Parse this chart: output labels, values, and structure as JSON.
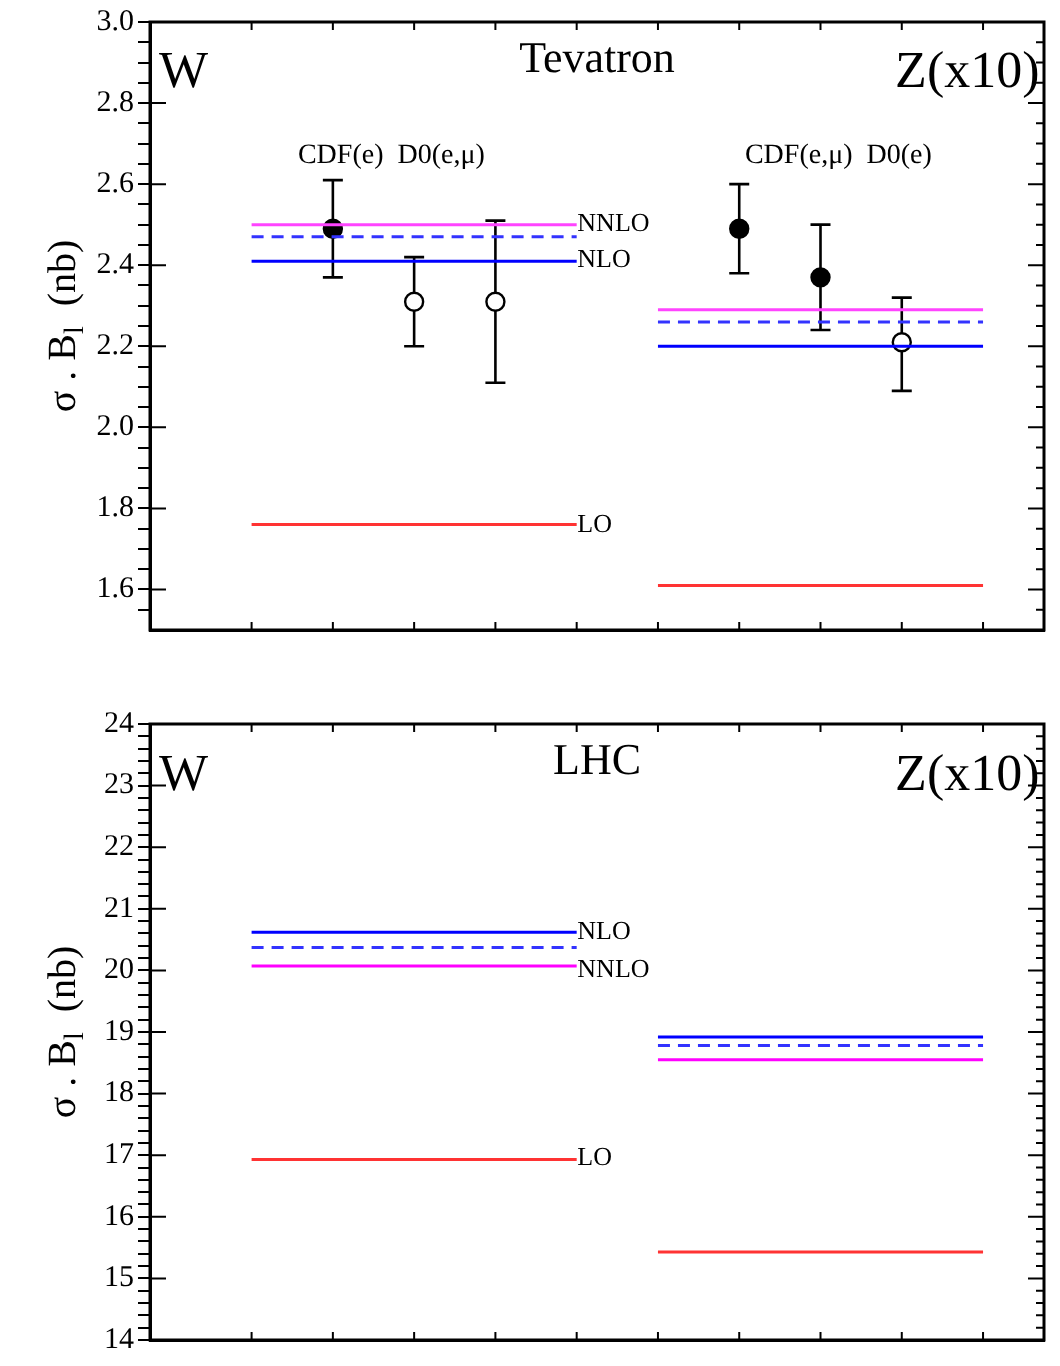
{
  "chart_data": [
    {
      "type": "line",
      "title": "Tevatron",
      "ylabel": "σ . B$_{l}$  (nb)",
      "tick_labels": "y",
      "categories": [
        null,
        null,
        null,
        null,
        null,
        null,
        null,
        null,
        null,
        null,
        null,
        null,
        null,
        null,
        null,
        null,
        null,
        null,
        null,
        null,
        null,
        null
      ],
      "ylim": [
        1.5,
        3.0
      ],
      "yticks": [
        {
          "value": 1.55,
          "label": null
        },
        1.6,
        {
          "value": 1.65,
          "label": null
        },
        {
          "value": 1.7,
          "label": null
        },
        {
          "value": 1.75,
          "label": null
        },
        1.8,
        {
          "value": 1.85,
          "label": null
        },
        {
          "value": 1.9,
          "label": null
        },
        {
          "value": 1.95,
          "label": null
        },
        {
          "value": 2,
          "label": "2.0"
        },
        {
          "value": 2.05,
          "label": null
        },
        {
          "value": 2.1,
          "label": null
        },
        {
          "value": 2.15,
          "label": null
        },
        2.2,
        {
          "value": 2.25,
          "label": null
        },
        {
          "value": 2.3,
          "label": null
        },
        {
          "value": 2.35,
          "label": null
        },
        2.4,
        {
          "value": 2.45,
          "label": null
        },
        {
          "value": 2.5,
          "label": null
        },
        {
          "value": 2.55,
          "label": null
        },
        2.6,
        {
          "value": 2.65,
          "label": null
        },
        {
          "value": 2.7,
          "label": null
        },
        {
          "value": 2.75,
          "label": null
        },
        2.8,
        {
          "value": 2.85,
          "label": null
        },
        {
          "value": 2.9,
          "label": null
        },
        {
          "value": 2.95,
          "label": null
        },
        {
          "value": 3,
          "label": "3.0"
        }
      ],
      "series": [
        {
          "color": "#ff44ff",
          "values": [
            null,
            null,
            2.5,
            2.5,
            2.5,
            2.5,
            2.5,
            2.5,
            2.5,
            2.5,
            2.5,
            null,
            null,
            null,
            null,
            null,
            null,
            null,
            null,
            null,
            null,
            null
          ]
        },
        {
          "color": "#ff44ff",
          "values": [
            null,
            null,
            null,
            null,
            null,
            null,
            null,
            null,
            null,
            null,
            null,
            null,
            2.29,
            2.29,
            2.29,
            2.29,
            2.29,
            2.29,
            2.29,
            2.29,
            2.29,
            null
          ]
        },
        {
          "color": "#3333ff",
          "line_style": "dashed",
          "values": [
            null,
            null,
            2.47,
            2.47,
            2.47,
            2.47,
            2.47,
            2.47,
            2.47,
            2.47,
            2.47,
            null,
            null,
            null,
            null,
            null,
            null,
            null,
            null,
            null,
            null,
            null
          ]
        },
        {
          "color": "#3333ff",
          "line_style": "dashed",
          "values": [
            null,
            null,
            null,
            null,
            null,
            null,
            null,
            null,
            null,
            null,
            null,
            null,
            2.26,
            2.26,
            2.26,
            2.26,
            2.26,
            2.26,
            2.26,
            2.26,
            2.26,
            null
          ]
        },
        {
          "color": "#0000ff",
          "values": [
            null,
            null,
            2.41,
            2.41,
            2.41,
            2.41,
            2.41,
            2.41,
            2.41,
            2.41,
            2.41,
            null,
            null,
            null,
            null,
            null,
            null,
            null,
            null,
            null,
            null,
            null
          ]
        },
        {
          "color": "#0000ff",
          "values": [
            null,
            null,
            null,
            null,
            null,
            null,
            null,
            null,
            null,
            null,
            null,
            null,
            2.2,
            2.2,
            2.2,
            2.2,
            2.2,
            2.2,
            2.2,
            2.2,
            2.2,
            null
          ]
        },
        {
          "color": "#ff3333",
          "values": [
            null,
            null,
            1.76,
            1.76,
            1.76,
            1.76,
            1.76,
            1.76,
            1.76,
            1.76,
            1.76,
            null,
            null,
            null,
            null,
            null,
            null,
            null,
            null,
            null,
            null,
            null
          ]
        },
        {
          "color": "#ff3333",
          "values": [
            null,
            null,
            null,
            null,
            null,
            null,
            null,
            null,
            null,
            null,
            null,
            null,
            1.61,
            1.61,
            1.61,
            1.61,
            1.61,
            1.61,
            1.61,
            1.61,
            1.61,
            null
          ]
        },
        {
          "type": "scatter",
          "color": "#000000",
          "marker": "circle",
          "values": [
            null,
            null,
            null,
            null,
            2.49,
            null,
            null,
            null,
            null,
            null,
            null,
            null,
            null,
            null,
            2.49,
            null,
            2.37,
            null,
            null,
            null,
            null,
            null
          ],
          "errors": [
            null,
            null,
            null,
            null,
            [
              2.37,
              2.61
            ],
            null,
            null,
            null,
            null,
            null,
            null,
            null,
            null,
            null,
            [
              2.38,
              2.6
            ],
            null,
            [
              2.24,
              2.5
            ],
            null,
            null,
            null,
            null,
            null
          ]
        },
        {
          "type": "scatter",
          "color": "#ffffff",
          "marker": "circle",
          "values": [
            null,
            null,
            null,
            null,
            null,
            null,
            2.31,
            null,
            2.31,
            null,
            null,
            null,
            null,
            null,
            null,
            null,
            null,
            null,
            2.21,
            null,
            null,
            null
          ],
          "errors": [
            null,
            null,
            null,
            null,
            null,
            null,
            [
              2.2,
              2.42
            ],
            null,
            [
              2.11,
              2.51
            ],
            null,
            null,
            null,
            null,
            null,
            null,
            null,
            null,
            null,
            [
              2.09,
              2.32
            ],
            null,
            null,
            null
          ]
        }
      ],
      "annotations": [
        "W",
        "CDF(e)  D0(e,μ)",
        "CDF(e,μ)  D0(e)",
        "Z(x10)",
        "NNLO",
        "NLO",
        "LO"
      ]
    },
    {
      "type": "line",
      "title": "LHC",
      "ylabel": "σ . B$_{l}$  (nb)",
      "tick_labels": "y",
      "categories": [
        null,
        null,
        null,
        null,
        null,
        null,
        null,
        null,
        null,
        null,
        null,
        null,
        null,
        null,
        null,
        null,
        null,
        null,
        null,
        null,
        null,
        null
      ],
      "ylim": [
        14,
        24
      ],
      "yticks": [
        14,
        {
          "value": 14.2,
          "label": null
        },
        {
          "value": 14.4,
          "label": null
        },
        {
          "value": 14.6,
          "label": null
        },
        {
          "value": 14.8,
          "label": null
        },
        15,
        {
          "value": 15.2,
          "label": null
        },
        {
          "value": 15.4,
          "label": null
        },
        {
          "value": 15.6,
          "label": null
        },
        {
          "value": 15.8,
          "label": null
        },
        16,
        {
          "value": 16.2,
          "label": null
        },
        {
          "value": 16.4,
          "label": null
        },
        {
          "value": 16.6,
          "label": null
        },
        {
          "value": 16.8,
          "label": null
        },
        17,
        {
          "value": 17.2,
          "label": null
        },
        {
          "value": 17.4,
          "label": null
        },
        {
          "value": 17.6,
          "label": null
        },
        {
          "value": 17.8,
          "label": null
        },
        18,
        {
          "value": 18.2,
          "label": null
        },
        {
          "value": 18.4,
          "label": null
        },
        {
          "value": 18.6,
          "label": null
        },
        {
          "value": 18.8,
          "label": null
        },
        19,
        {
          "value": 19.2,
          "label": null
        },
        {
          "value": 19.4,
          "label": null
        },
        {
          "value": 19.6,
          "label": null
        },
        {
          "value": 19.8,
          "label": null
        },
        20,
        {
          "value": 20.2,
          "label": null
        },
        {
          "value": 20.4,
          "label": null
        },
        {
          "value": 20.6,
          "label": null
        },
        {
          "value": 20.8,
          "label": null
        },
        21,
        {
          "value": 21.2,
          "label": null
        },
        {
          "value": 21.4,
          "label": null
        },
        {
          "value": 21.6,
          "label": null
        },
        {
          "value": 21.8,
          "label": null
        },
        22,
        {
          "value": 22.2,
          "label": null
        },
        {
          "value": 22.4,
          "label": null
        },
        {
          "value": 22.6,
          "label": null
        },
        {
          "value": 22.8,
          "label": null
        },
        23,
        {
          "value": 23.2,
          "label": null
        },
        {
          "value": 23.4,
          "label": null
        },
        {
          "value": 23.6,
          "label": null
        },
        {
          "value": 23.8,
          "label": null
        },
        24
      ],
      "series": [
        {
          "color": "#0000ff",
          "values": [
            null,
            null,
            20.62,
            20.62,
            20.62,
            20.62,
            20.62,
            20.62,
            20.62,
            20.62,
            20.62,
            null,
            null,
            null,
            null,
            null,
            null,
            null,
            null,
            null,
            null,
            null
          ]
        },
        {
          "color": "#0000ff",
          "values": [
            null,
            null,
            null,
            null,
            null,
            null,
            null,
            null,
            null,
            null,
            null,
            null,
            18.92,
            18.92,
            18.92,
            18.92,
            18.92,
            18.92,
            18.92,
            18.92,
            18.92,
            null
          ]
        },
        {
          "color": "#3333ff",
          "line_style": "dashed",
          "values": [
            null,
            null,
            20.37,
            20.37,
            20.37,
            20.37,
            20.37,
            20.37,
            20.37,
            20.37,
            20.37,
            null,
            null,
            null,
            null,
            null,
            null,
            null,
            null,
            null,
            null,
            null
          ]
        },
        {
          "color": "#3333ff",
          "line_style": "dashed",
          "values": [
            null,
            null,
            null,
            null,
            null,
            null,
            null,
            null,
            null,
            null,
            null,
            null,
            18.78,
            18.78,
            18.78,
            18.78,
            18.78,
            18.78,
            18.78,
            18.78,
            18.78,
            null
          ]
        },
        {
          "color": "#ff00ff",
          "values": [
            null,
            null,
            20.07,
            20.07,
            20.07,
            20.07,
            20.07,
            20.07,
            20.07,
            20.07,
            20.07,
            null,
            null,
            null,
            null,
            null,
            null,
            null,
            null,
            null,
            null,
            null
          ]
        },
        {
          "color": "#ff00ff",
          "values": [
            null,
            null,
            null,
            null,
            null,
            null,
            null,
            null,
            null,
            null,
            null,
            null,
            18.55,
            18.55,
            18.55,
            18.55,
            18.55,
            18.55,
            18.55,
            18.55,
            18.55,
            null
          ]
        },
        {
          "color": "#ff3333",
          "values": [
            null,
            null,
            16.93,
            16.93,
            16.93,
            16.93,
            16.93,
            16.93,
            16.93,
            16.93,
            16.93,
            null,
            null,
            null,
            null,
            null,
            null,
            null,
            null,
            null,
            null,
            null
          ]
        },
        {
          "color": "#ff3333",
          "values": [
            null,
            null,
            null,
            null,
            null,
            null,
            null,
            null,
            null,
            null,
            null,
            null,
            15.43,
            15.43,
            15.43,
            15.43,
            15.43,
            15.43,
            15.43,
            15.43,
            15.43,
            null
          ]
        }
      ],
      "annotations": [
        "W",
        "Z(x10)",
        "NLO",
        "NNLO",
        "LO"
      ]
    }
  ]
}
